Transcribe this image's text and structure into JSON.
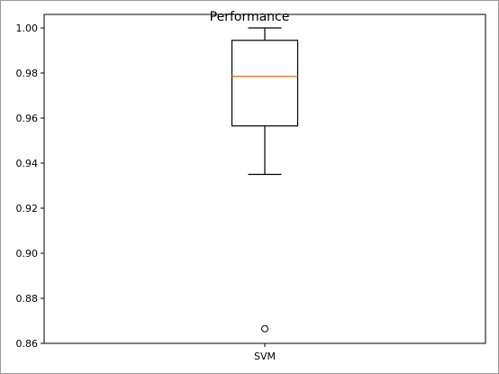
{
  "chart_data": {
    "type": "box",
    "title": "Performance",
    "xlabel": "",
    "ylabel": "",
    "categories": [
      "SVM"
    ],
    "boxes": [
      {
        "label": "SVM",
        "whisker_low": 0.935,
        "q1": 0.9565,
        "median": 0.9785,
        "q3": 0.9945,
        "whisker_high": 1.0,
        "outliers": [
          0.8665
        ]
      }
    ],
    "ylim": [
      0.86,
      1.006
    ],
    "yticks": [
      0.86,
      0.88,
      0.9,
      0.92,
      0.94,
      0.96,
      0.98,
      1.0
    ],
    "ytick_labels": [
      "0.86",
      "0.88",
      "0.90",
      "0.92",
      "0.94",
      "0.96",
      "0.98",
      "1.00"
    ],
    "grid": false,
    "colors": {
      "box": "#000000",
      "median": "#ff7f0e",
      "outlier": "#000000"
    }
  }
}
